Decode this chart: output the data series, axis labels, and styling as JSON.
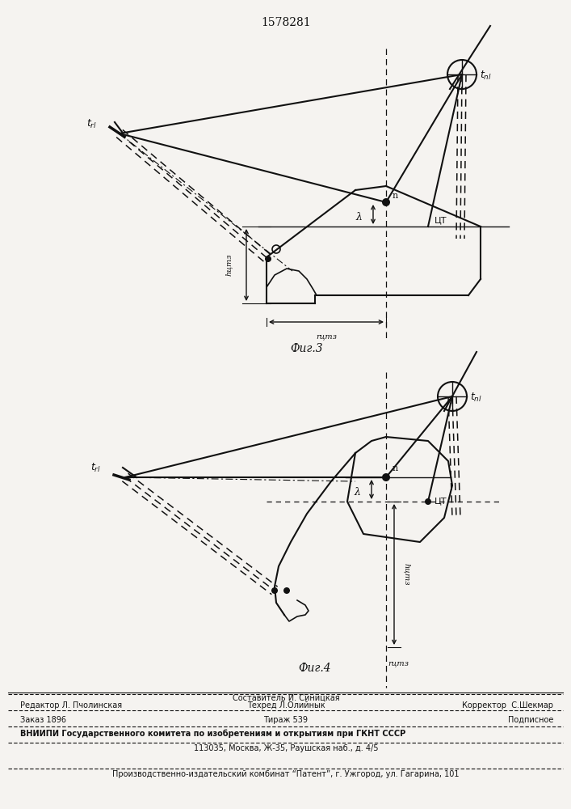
{
  "title": "1578281",
  "fig3_label": "Фиг.3",
  "fig4_label": "Фиг.4",
  "footer_redaktor": "Редактор Л. Пчолинская",
  "footer_sostavitel": "Составитель И. Синицкая",
  "footer_tehred": "Техред Л.Олийнык",
  "footer_korrektor": "Корректор  С.Шекмар",
  "footer_zakaz": "Заказ 1896",
  "footer_tirazh": "Тираж 539",
  "footer_podpisnoe": "Подписное",
  "footer_vniip1": "ВНИИПИ Государственного комитета по изобретениям и открытиям при ГКНТ СССР",
  "footer_vniip2": "113035, Москва, Ж-35, Раушская наб., д. 4/5",
  "footer_patent": "Производственно-издательский комбинат “Патент”, г. Ужгород, ул. Гагарина, 101",
  "bg_color": "#f5f3f0",
  "line_color": "#111111"
}
